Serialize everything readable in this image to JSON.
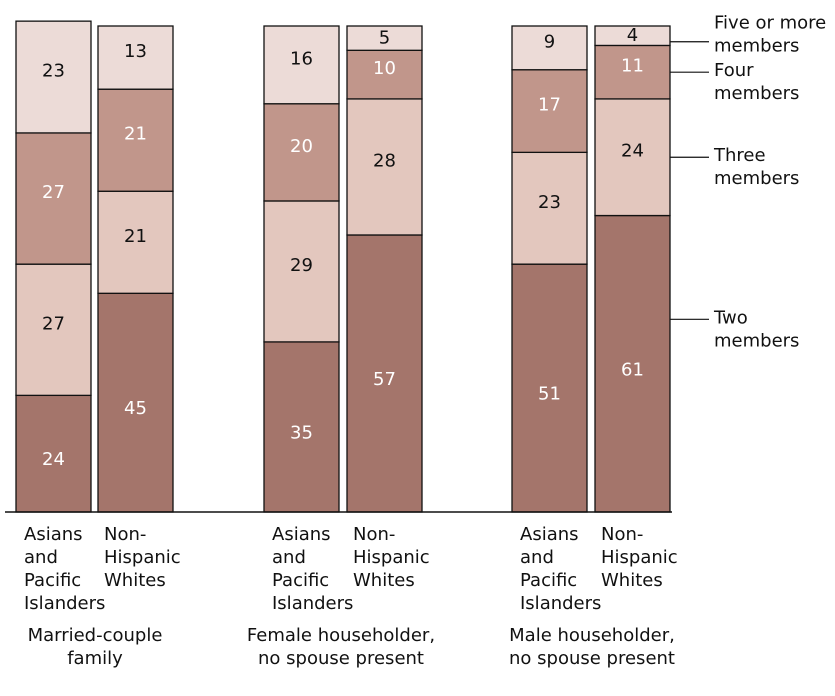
{
  "chart_data": {
    "type": "bar",
    "stacked": true,
    "percent": true,
    "groups": [
      {
        "label_lines": [
          "Married-couple",
          "family"
        ],
        "bars": [
          {
            "label_lines": [
              "Asians",
              "and",
              "Pacific",
              "Islanders"
            ],
            "values": [
              24,
              27,
              27,
              23
            ]
          },
          {
            "label_lines": [
              "Non-",
              "Hispanic",
              "Whites"
            ],
            "values": [
              45,
              21,
              21,
              13
            ]
          }
        ]
      },
      {
        "label_lines": [
          "Female householder,",
          "no spouse present"
        ],
        "bars": [
          {
            "label_lines": [
              "Asians",
              "and",
              "Pacific",
              "Islanders"
            ],
            "values": [
              35,
              29,
              20,
              16
            ]
          },
          {
            "label_lines": [
              "Non-",
              "Hispanic",
              "Whites"
            ],
            "values": [
              57,
              28,
              10,
              5
            ]
          }
        ]
      },
      {
        "label_lines": [
          "Male householder,",
          "no spouse present"
        ],
        "bars": [
          {
            "label_lines": [
              "Asians",
              "and",
              "Pacific",
              "Islanders"
            ],
            "values": [
              51,
              23,
              17,
              9
            ]
          },
          {
            "label_lines": [
              "Non-",
              "Hispanic",
              "Whites"
            ],
            "values": [
              61,
              24,
              11,
              4
            ]
          }
        ]
      }
    ],
    "series": [
      {
        "label_lines": [
          "Two",
          "members"
        ],
        "color": "#a4756b",
        "text_color": "#ffffff"
      },
      {
        "label_lines": [
          "Three",
          "members"
        ],
        "color": "#e3c7be",
        "text_color": "#111111"
      },
      {
        "label_lines": [
          "Four",
          "members"
        ],
        "color": "#c1968b",
        "text_color": "#ffffff"
      },
      {
        "label_lines": [
          "Five or more",
          "members"
        ],
        "color": "#ecdbd7",
        "text_color": "#111111"
      }
    ],
    "ylim": [
      0,
      100
    ],
    "legend_position": "right"
  }
}
